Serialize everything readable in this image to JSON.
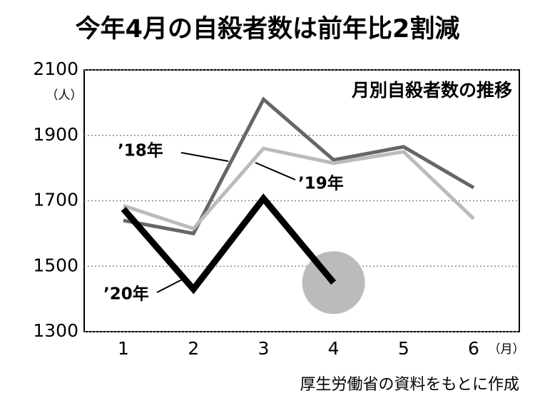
{
  "chart_data": {
    "type": "line",
    "title": "今年4月の自殺者数は前年比2割減",
    "subtitle": "月別自殺者数の推移",
    "y_label": "（人）",
    "x_label": "（月）",
    "source": "厚生労働省の資料をもとに作成",
    "categories": [
      "1",
      "2",
      "3",
      "4",
      "5",
      "6"
    ],
    "series": [
      {
        "name": "’18年",
        "color": "#666666",
        "values": [
          1640,
          1600,
          2010,
          1825,
          1865,
          1740
        ]
      },
      {
        "name": "’19年",
        "color": "#bbbbbb",
        "values": [
          1685,
          1615,
          1860,
          1815,
          1850,
          1645
        ]
      },
      {
        "name": "’20年",
        "color": "#000000",
        "values": [
          1675,
          1430,
          1707,
          1450,
          null,
          null
        ]
      }
    ],
    "ylim": [
      1300,
      2100
    ],
    "yticks": [
      1300,
      1500,
      1700,
      1900,
      2100
    ],
    "grid": true
  }
}
